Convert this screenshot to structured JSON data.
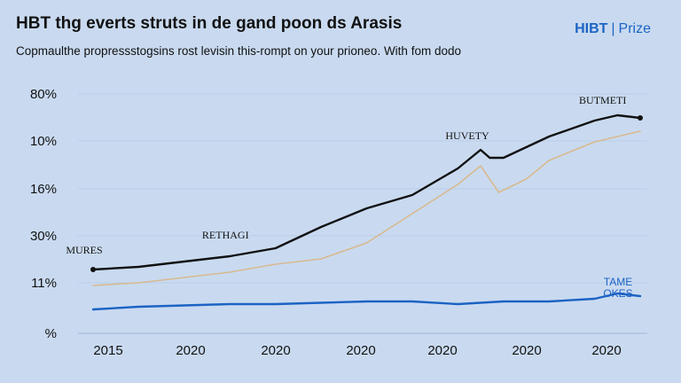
{
  "title": "HBT thg everts struts in de gand poon ds Arasis",
  "subtitle": "Copmaulthe propressstogsins rost levisin this-rompt on your prioneo. With fom dodo",
  "brand": {
    "name": "HIBT",
    "suffix": "Prize"
  },
  "colors": {
    "background": "#c9daf0",
    "black_series": "#111111",
    "tan_series": "#d8b98f",
    "blue_series": "#1c63c4"
  },
  "chart_data": {
    "type": "line",
    "title": "HBT thg everts struts in de gand poon ds Arasis",
    "y_tick_labels": [
      "80%",
      "10%",
      "16%",
      "30%",
      "11%",
      "%"
    ],
    "x_tick_labels": [
      "2015",
      "2020",
      "2020",
      "2020",
      "2020",
      "2020",
      "2020"
    ],
    "grid": "horizontal",
    "y_axis_note": "tick labels are not monotonic; values below are on the 0-100 scale implied by the 80% top tick",
    "ylim": [
      0,
      90
    ],
    "x": [
      2014,
      2015,
      2016,
      2017,
      2018,
      2019,
      2020,
      2021,
      2022,
      2023,
      2024,
      2025,
      2026
    ],
    "series": [
      {
        "color": "#111111",
        "values": [
          [
            0,
            24
          ],
          [
            1,
            25
          ],
          [
            2,
            27
          ],
          [
            3,
            29
          ],
          [
            4,
            32
          ],
          [
            5,
            40
          ],
          [
            6,
            47
          ],
          [
            7,
            52
          ],
          [
            8,
            62
          ],
          [
            8.5,
            69
          ],
          [
            8.7,
            66
          ],
          [
            9,
            66
          ],
          [
            10,
            74
          ],
          [
            11,
            80
          ],
          [
            11.5,
            82
          ],
          [
            12,
            81
          ]
        ]
      },
      {
        "color": "#d8b98f",
        "values": [
          [
            0,
            18
          ],
          [
            1,
            19
          ],
          [
            2,
            21
          ],
          [
            3,
            23
          ],
          [
            4,
            26
          ],
          [
            5,
            28
          ],
          [
            6,
            34
          ],
          [
            7,
            45
          ],
          [
            8,
            56
          ],
          [
            8.5,
            63
          ],
          [
            8.9,
            53
          ],
          [
            9.5,
            58
          ],
          [
            10,
            65
          ],
          [
            11,
            72
          ],
          [
            12,
            76
          ]
        ]
      },
      {
        "color": "#1c63c4",
        "values": [
          [
            0,
            9
          ],
          [
            1,
            10
          ],
          [
            2,
            10.5
          ],
          [
            3,
            11
          ],
          [
            4,
            11
          ],
          [
            5,
            11.5
          ],
          [
            6,
            12
          ],
          [
            7,
            12
          ],
          [
            8,
            11
          ],
          [
            9,
            12
          ],
          [
            10,
            12
          ],
          [
            11,
            13
          ],
          [
            11.5,
            15
          ],
          [
            12,
            14
          ]
        ]
      }
    ],
    "annotations": [
      {
        "text": "MURES",
        "at": [
          0,
          24
        ]
      },
      {
        "text": "RETHAGI",
        "at": [
          3,
          29
        ]
      },
      {
        "text": "HUVETY",
        "at": [
          8.5,
          69
        ]
      },
      {
        "text": "BUTMETI",
        "at": [
          11.8,
          81
        ]
      },
      {
        "text": "TAME OKES",
        "at": [
          12,
          14
        ]
      }
    ]
  }
}
